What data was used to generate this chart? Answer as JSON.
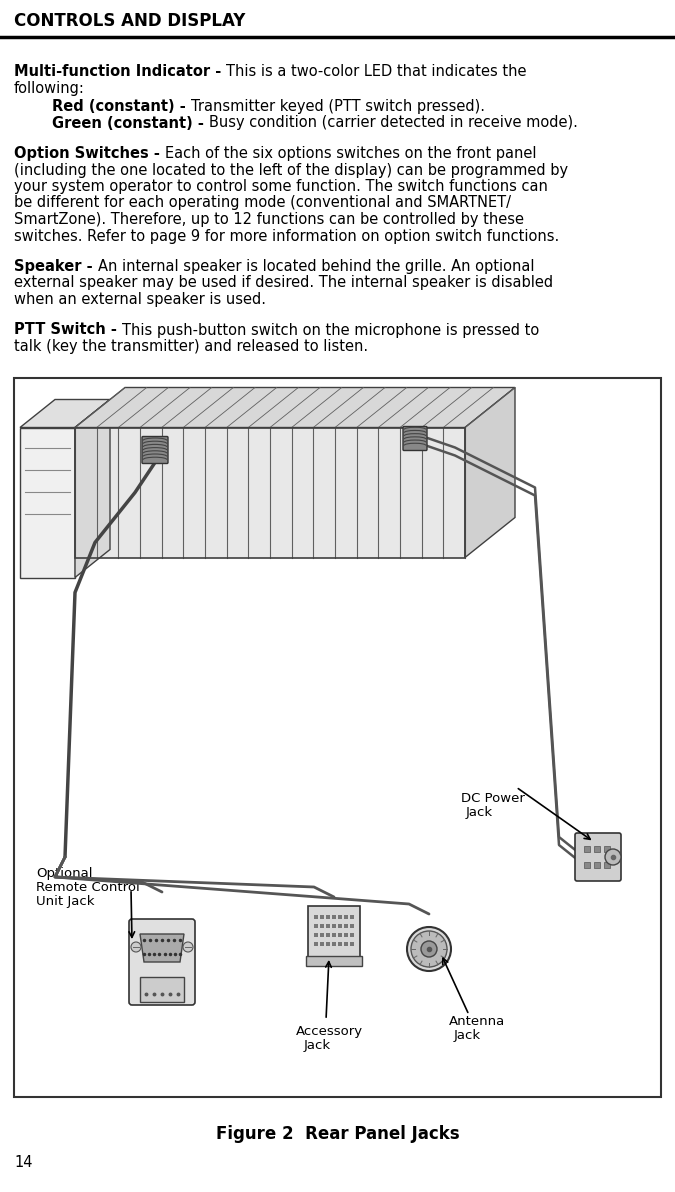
{
  "page_title": "CONTROLS AND DISPLAY",
  "page_number": "14",
  "background_color": "#ffffff",
  "text_color": "#000000",
  "figure_caption": "Figure 2  Rear Panel Jacks",
  "sections": [
    {
      "bold_intro": "Multi-function Indicator - ",
      "lines": [
        "This is a two-color LED that indicates the",
        "following:"
      ],
      "indent_items": [
        {
          "bold": "Red (constant) - ",
          "text": "Transmitter keyed (PTT switch pressed)."
        },
        {
          "bold": "Green (constant) - ",
          "text": "Busy condition (carrier detected in receive mode)."
        }
      ]
    },
    {
      "bold_intro": "Option Switches - ",
      "lines": [
        "Each of the six options switches on the front panel",
        "(including the one located to the left of the display) can be programmed by",
        "your system operator to control some function. The switch functions can",
        "be different for each operating mode (conventional and SMARTNET/",
        "SmartZone). Therefore, up to 12 functions can be controlled by these",
        "switches. Refer to page 9 for more information on option switch functions."
      ]
    },
    {
      "bold_intro": "Speaker - ",
      "lines": [
        "An internal speaker is located behind the grille. An optional",
        "external speaker may be used if desired. The internal speaker is disabled",
        "when an external speaker is used."
      ]
    },
    {
      "bold_intro": "PTT Switch - ",
      "lines": [
        "This push-button switch on the microphone is pressed to",
        "talk (key the transmitter) and released to listen."
      ]
    }
  ]
}
